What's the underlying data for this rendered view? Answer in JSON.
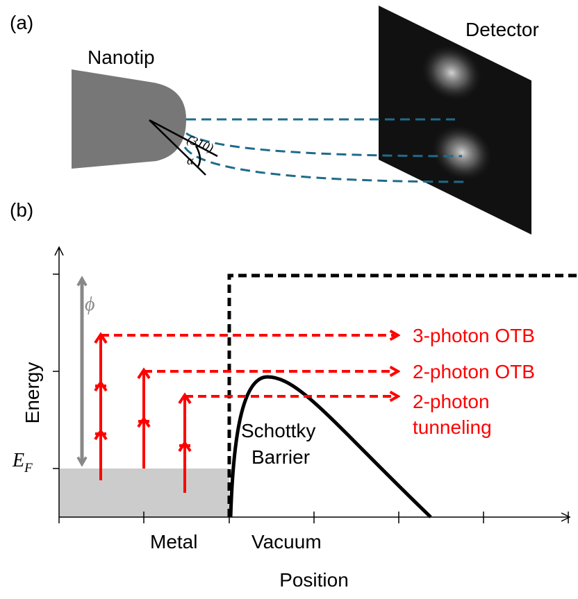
{
  "panel_a": {
    "label": "(a)",
    "tip_label": "Nanotip",
    "detector_label": "Detector",
    "facet": "(310)",
    "angle": "α"
  },
  "panel_b": {
    "label": "(b)",
    "work_function": "ϕ",
    "fermi": {
      "main": "E",
      "sub": "F"
    },
    "y_axis": "Energy",
    "x_axis": "Position",
    "process_labels": [
      [
        "3-photon OTB"
      ],
      [
        "2-photon OTB"
      ],
      [
        "2-photon",
        "tunneling"
      ]
    ],
    "barrier_label": [
      "Schottky",
      "Barrier"
    ],
    "regions": [
      "Metal",
      "Vacuum"
    ]
  }
}
